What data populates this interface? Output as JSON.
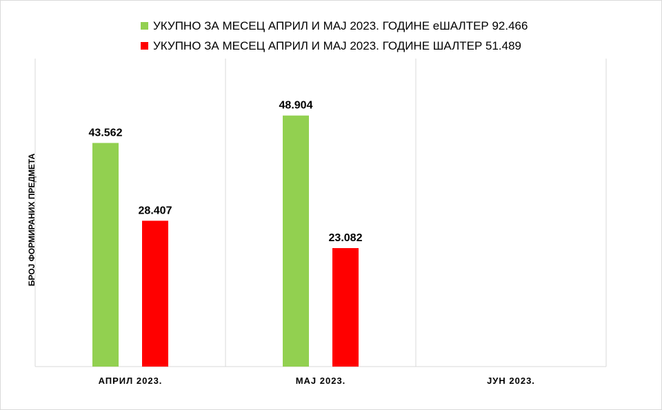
{
  "chart_data": {
    "type": "bar",
    "title": "",
    "xlabel": "",
    "ylabel": "БРОЈ ФОРМИРАНИХ ПРЕДМЕТА",
    "categories": [
      "АПРИЛ 2023.",
      "МАЈ 2023.",
      "ЈУН 2023."
    ],
    "series": [
      {
        "name": "УКУПНО ЗА МЕСЕЦ АПРИЛ И МАЈ 2023. ГОДИНЕ еШАЛТЕР 92.466",
        "color": "#92d050",
        "values": [
          43562,
          48904,
          null
        ],
        "labels": [
          "43.562",
          "48.904",
          ""
        ]
      },
      {
        "name": "УКУПНО ЗА МЕСЕЦ АПРИЛ И МАЈ 2023. ГОДИНЕ ШАЛТЕР 51.489",
        "color": "#ff0000",
        "values": [
          28407,
          23082,
          null
        ],
        "labels": [
          "28.407",
          "23.082",
          ""
        ]
      }
    ],
    "ylim": [
      0,
      60000
    ],
    "grid": "vertical category separators",
    "legend": "top-center"
  }
}
